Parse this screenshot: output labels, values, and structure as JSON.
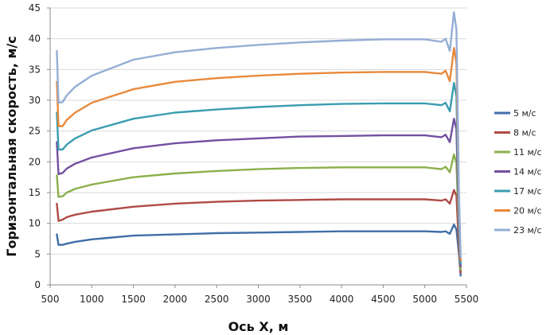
{
  "chart_data": {
    "type": "line",
    "xlabel": "Ось X, м",
    "ylabel": "Горизонтальная скорость, м/с",
    "xlim": [
      500,
      5500
    ],
    "ylim": [
      0,
      45
    ],
    "x_ticks": [
      500,
      1000,
      1500,
      2000,
      2500,
      3000,
      3500,
      4000,
      4500,
      5000,
      5500
    ],
    "y_ticks": [
      0,
      5,
      10,
      15,
      20,
      25,
      30,
      35,
      40,
      45
    ],
    "grid": "horizontal",
    "legend_position": "right",
    "x": [
      580,
      600,
      650,
      700,
      800,
      1000,
      1500,
      2000,
      2500,
      3000,
      3500,
      4000,
      4500,
      5000,
      5200,
      5250,
      5300,
      5350,
      5380,
      5410,
      5430
    ],
    "series": [
      {
        "name": "5 м/с",
        "color": "#3f6ea8",
        "values": [
          8.2,
          6.5,
          6.5,
          6.7,
          7.0,
          7.4,
          8.0,
          8.2,
          8.4,
          8.5,
          8.6,
          8.7,
          8.7,
          8.7,
          8.6,
          8.7,
          8.3,
          9.8,
          9.0,
          5.0,
          1.5
        ]
      },
      {
        "name": "8 м/с",
        "color": "#b04a46",
        "values": [
          13.2,
          10.4,
          10.6,
          11.0,
          11.4,
          11.9,
          12.7,
          13.2,
          13.5,
          13.7,
          13.8,
          13.9,
          13.9,
          13.9,
          13.7,
          13.9,
          13.2,
          15.4,
          14.5,
          6.0,
          2.0
        ]
      },
      {
        "name": "11 м/с",
        "color": "#8bb04a",
        "values": [
          17.8,
          14.3,
          14.4,
          15.0,
          15.6,
          16.3,
          17.5,
          18.1,
          18.5,
          18.8,
          19.0,
          19.1,
          19.1,
          19.1,
          18.8,
          19.2,
          18.3,
          21.2,
          19.8,
          8.0,
          2.5
        ]
      },
      {
        "name": "14 м/с",
        "color": "#7350a0",
        "values": [
          23.2,
          18.0,
          18.2,
          18.9,
          19.7,
          20.7,
          22.2,
          23.0,
          23.5,
          23.8,
          24.1,
          24.2,
          24.3,
          24.3,
          24.0,
          24.4,
          23.2,
          27.0,
          25.3,
          9.0,
          3.0
        ]
      },
      {
        "name": "17 м/с",
        "color": "#3a9db0",
        "values": [
          28.0,
          22.0,
          22.0,
          22.8,
          23.8,
          25.1,
          27.0,
          28.0,
          28.5,
          28.9,
          29.2,
          29.4,
          29.5,
          29.5,
          29.2,
          29.6,
          28.2,
          32.8,
          30.7,
          11.0,
          3.5
        ]
      },
      {
        "name": "20 м/с",
        "color": "#e8893c",
        "values": [
          33.0,
          25.8,
          25.8,
          26.8,
          28.0,
          29.6,
          31.8,
          33.0,
          33.6,
          34.0,
          34.3,
          34.5,
          34.6,
          34.6,
          34.3,
          34.8,
          33.1,
          38.5,
          36.0,
          13.0,
          4.0
        ]
      },
      {
        "name": "23 м/с",
        "color": "#94aed5",
        "values": [
          38.0,
          29.6,
          29.7,
          30.8,
          32.2,
          34.0,
          36.6,
          37.8,
          38.5,
          39.0,
          39.4,
          39.7,
          39.9,
          39.9,
          39.5,
          40.0,
          38.0,
          44.3,
          41.5,
          15.0,
          4.5
        ]
      }
    ]
  }
}
